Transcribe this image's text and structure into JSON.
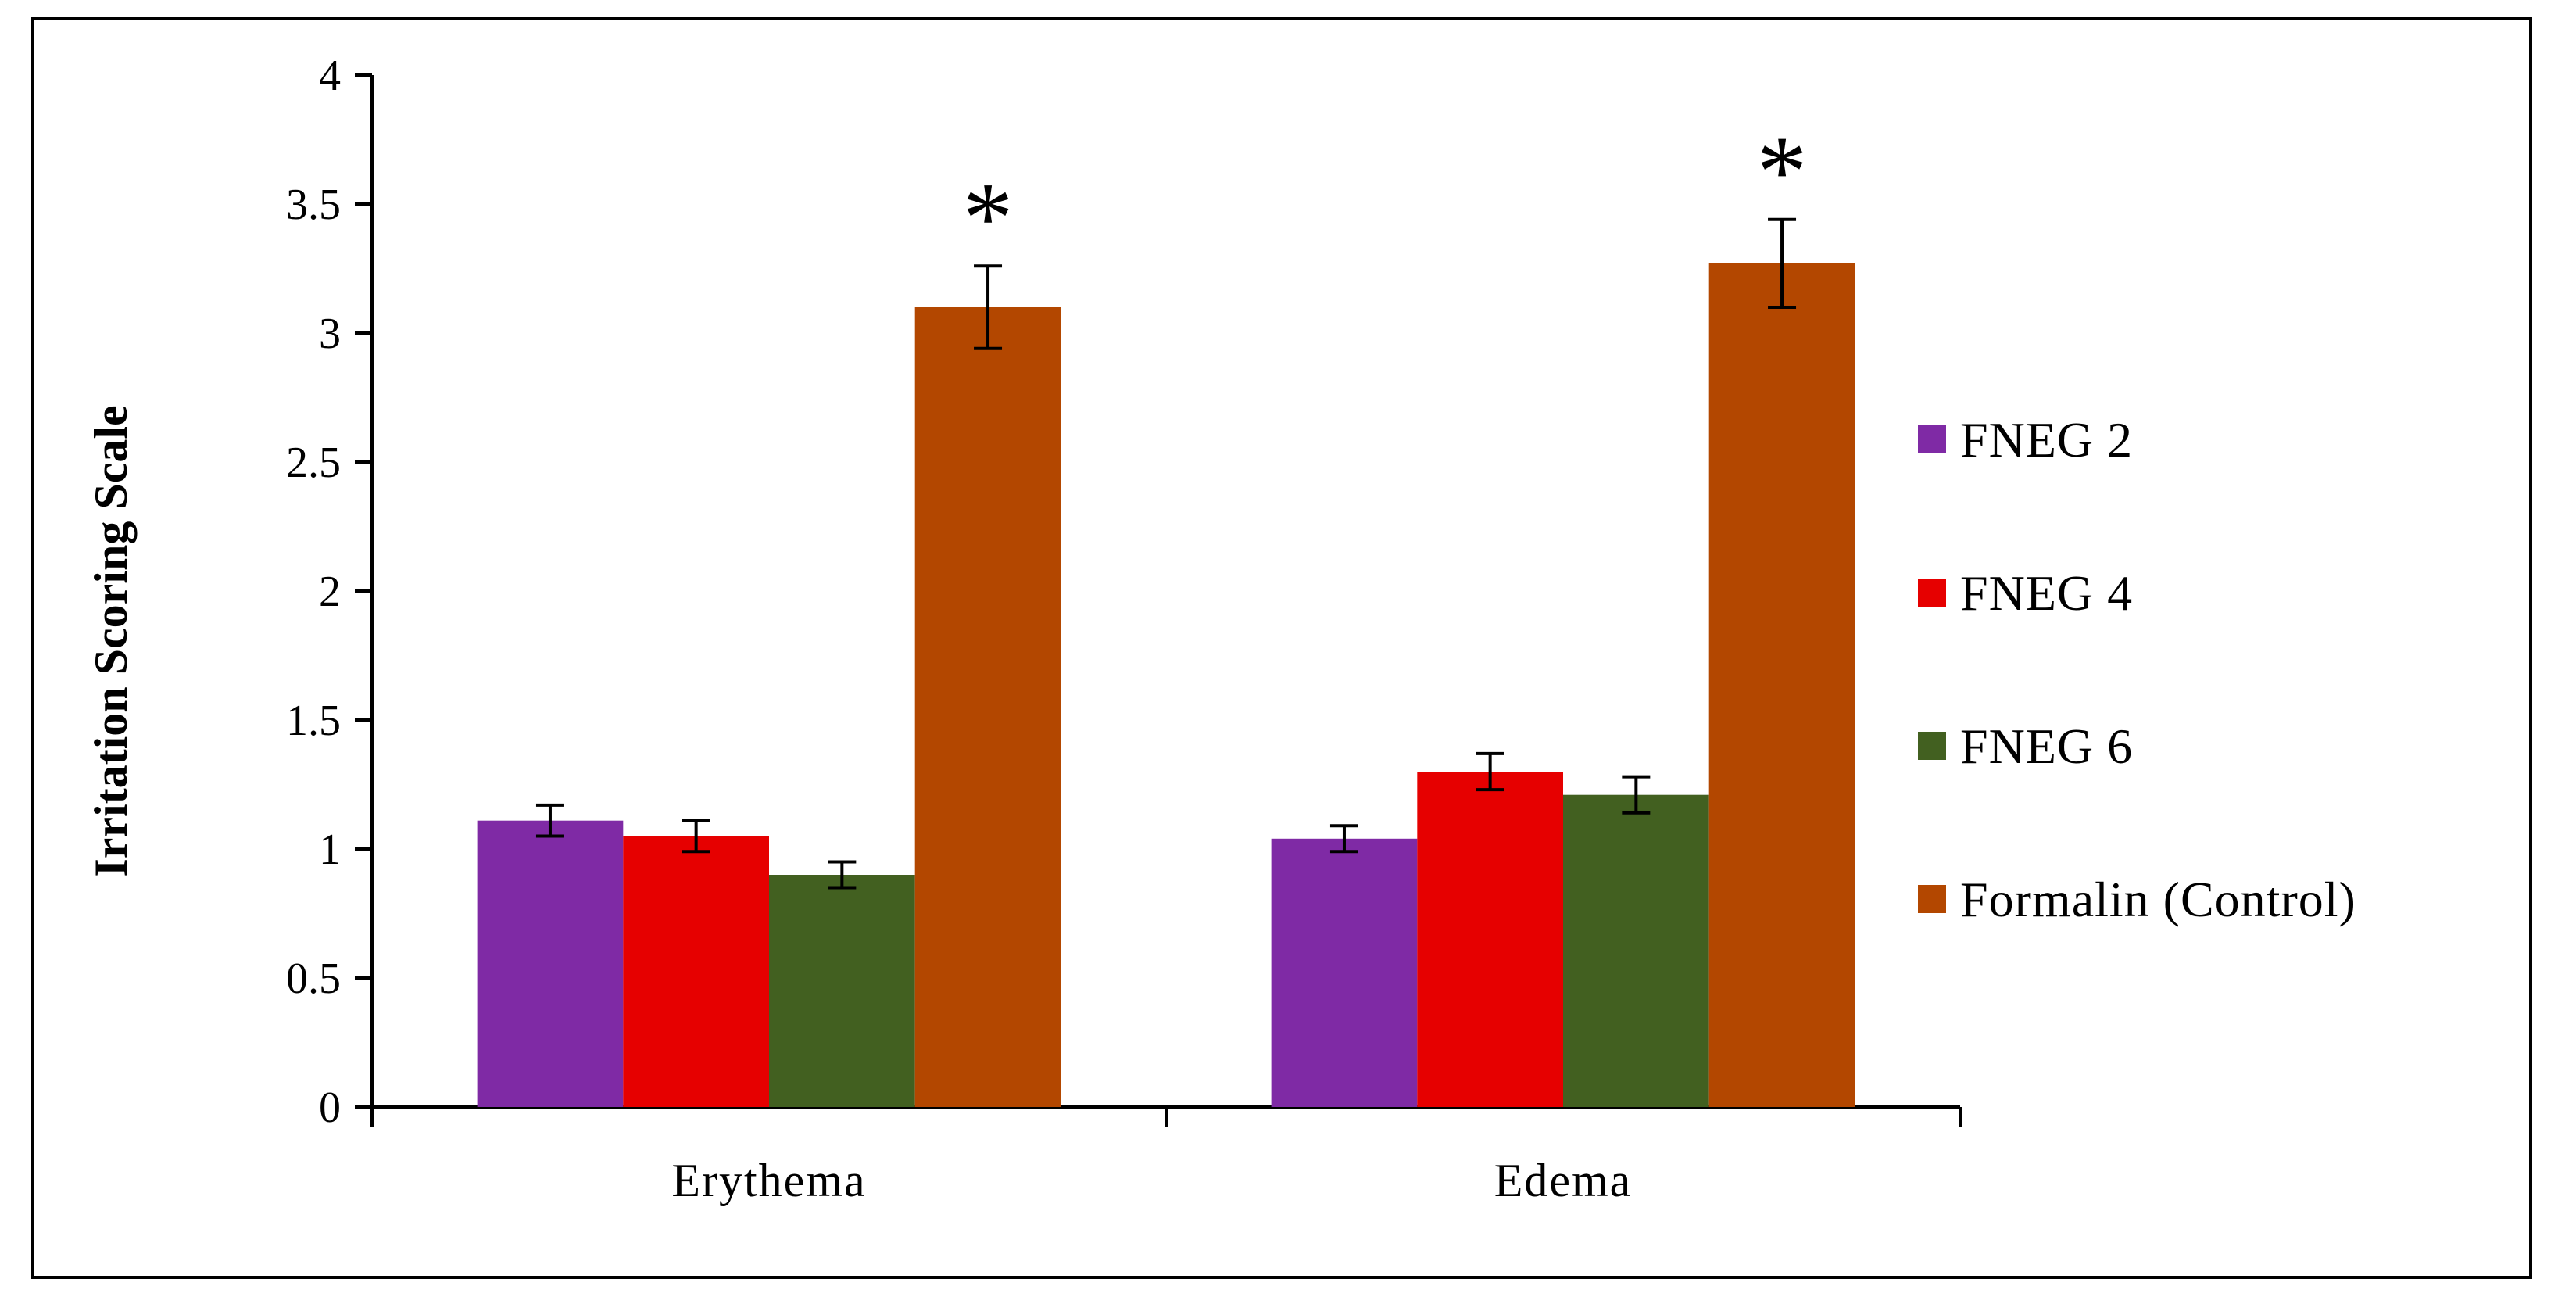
{
  "chart_data": {
    "type": "bar",
    "title": "",
    "xlabel": "",
    "ylabel": "Irritation  Scoring Scale",
    "ylim": [
      0,
      4
    ],
    "yticks": [
      0,
      0.5,
      1,
      1.5,
      2,
      2.5,
      3,
      3.5,
      4
    ],
    "ytick_labels": [
      "0",
      "0.5",
      "1",
      "1.5",
      "2",
      "2.5",
      "3",
      "3.5",
      "4"
    ],
    "categories": [
      "Erythema",
      "Edema"
    ],
    "grid": false,
    "legend_position": "right",
    "series": [
      {
        "name": "FNEG 2",
        "color": "#7f2aa5",
        "values": [
          1.11,
          1.04
        ],
        "errors": [
          0.06,
          0.05
        ]
      },
      {
        "name": "FNEG 4",
        "color": "#e60000",
        "values": [
          1.05,
          1.3
        ],
        "errors": [
          0.06,
          0.07
        ]
      },
      {
        "name": "FNEG 6",
        "color": "#426020",
        "values": [
          0.9,
          1.21
        ],
        "errors": [
          0.05,
          0.07
        ]
      },
      {
        "name": "Formalin (Control)",
        "color": "#b34700",
        "values": [
          3.1,
          3.27
        ],
        "errors": [
          0.16,
          0.17
        ]
      }
    ],
    "annotations": [
      {
        "text": "*",
        "category": "Erythema",
        "series": "Formalin (Control)"
      },
      {
        "text": "*",
        "category": "Edema",
        "series": "Formalin (Control)"
      }
    ]
  }
}
